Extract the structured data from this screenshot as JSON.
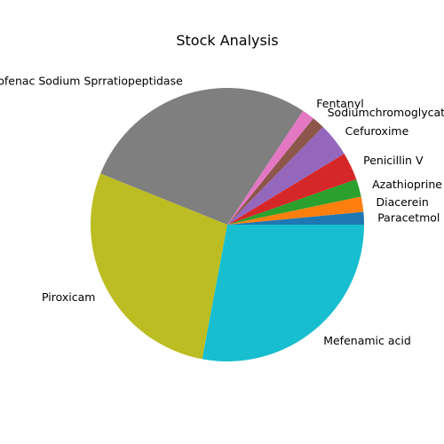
{
  "chart_data": {
    "type": "pie",
    "title": "Stock Analysis",
    "start_angle_deg": 0,
    "direction": "counterclockwise",
    "slices": [
      {
        "label": "Paracetmol",
        "value": 1.5,
        "color": "#1f77b4"
      },
      {
        "label": "Diacerein",
        "value": 1.8,
        "color": "#ff7f0e"
      },
      {
        "label": "Azathioprine",
        "value": 2.1,
        "color": "#2ca02c"
      },
      {
        "label": "Penicillin V",
        "value": 3.3,
        "color": "#d62728"
      },
      {
        "label": "Cefuroxime",
        "value": 4.0,
        "color": "#9467bd"
      },
      {
        "label": "Sodiumchromoglycate",
        "value": 1.5,
        "color": "#8c564b"
      },
      {
        "label": "Fentanyl",
        "value": 1.5,
        "color": "#e377c2"
      },
      {
        "label": "Aceclofenac Sodium Sprratiopeptidase",
        "value": 28.3,
        "color": "#7f7f7f"
      },
      {
        "label": "Piroxicam",
        "value": 28.2,
        "color": "#bcbd22"
      },
      {
        "label": "Mefenamic acid",
        "value": 28.0,
        "color": "#17becf"
      }
    ]
  }
}
